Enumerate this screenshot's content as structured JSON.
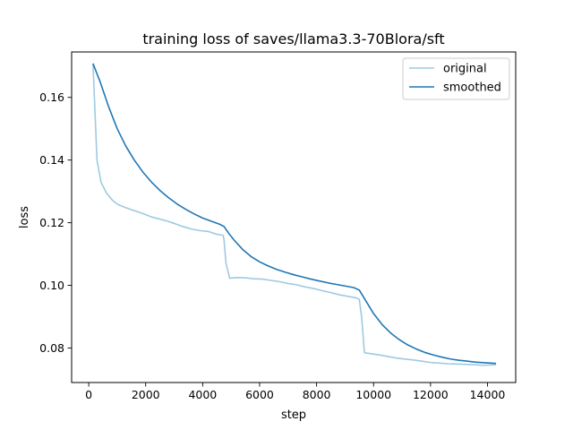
{
  "chart_data": {
    "type": "line",
    "title": "training loss of saves/llama3.3-70Blora/sft",
    "xlabel": "step",
    "ylabel": "loss",
    "xlim": [
      -600,
      14990
    ],
    "ylim": [
      0.069,
      0.1745
    ],
    "xticks": [
      0,
      2000,
      4000,
      6000,
      8000,
      10000,
      12000,
      14000
    ],
    "yticks": [
      0.08,
      0.1,
      0.12,
      0.14,
      0.16
    ],
    "xtick_labels": [
      "0",
      "2000",
      "4000",
      "6000",
      "8000",
      "10000",
      "12000",
      "14000"
    ],
    "ytick_labels": [
      "0.08",
      "0.10",
      "0.12",
      "0.14",
      "0.16"
    ],
    "grid": false,
    "legend_position": "top-right",
    "series": [
      {
        "name": "original",
        "color": "#9ecae1",
        "points": [
          [
            150,
            0.1708
          ],
          [
            290,
            0.14
          ],
          [
            430,
            0.133
          ],
          [
            620,
            0.1295
          ],
          [
            830,
            0.1272
          ],
          [
            1030,
            0.1258
          ],
          [
            1240,
            0.125
          ],
          [
            1480,
            0.1242
          ],
          [
            1720,
            0.1235
          ],
          [
            1960,
            0.1227
          ],
          [
            2220,
            0.1218
          ],
          [
            2480,
            0.1212
          ],
          [
            2760,
            0.1205
          ],
          [
            3000,
            0.1198
          ],
          [
            3300,
            0.1188
          ],
          [
            3600,
            0.118
          ],
          [
            3900,
            0.1175
          ],
          [
            4200,
            0.1172
          ],
          [
            4500,
            0.1163
          ],
          [
            4720,
            0.116
          ],
          [
            4750,
            0.1145
          ],
          [
            4820,
            0.107
          ],
          [
            4950,
            0.1023
          ],
          [
            5200,
            0.1025
          ],
          [
            5500,
            0.1024
          ],
          [
            5800,
            0.1021
          ],
          [
            6100,
            0.102
          ],
          [
            6400,
            0.1016
          ],
          [
            6700,
            0.1012
          ],
          [
            7000,
            0.1006
          ],
          [
            7300,
            0.1002
          ],
          [
            7600,
            0.0995
          ],
          [
            7900,
            0.099
          ],
          [
            8200,
            0.0983
          ],
          [
            8500,
            0.0977
          ],
          [
            8800,
            0.097
          ],
          [
            9100,
            0.0965
          ],
          [
            9400,
            0.096
          ],
          [
            9500,
            0.0955
          ],
          [
            9580,
            0.09
          ],
          [
            9680,
            0.0785
          ],
          [
            9900,
            0.0782
          ],
          [
            10200,
            0.0778
          ],
          [
            10500,
            0.0773
          ],
          [
            10800,
            0.0768
          ],
          [
            11100,
            0.0765
          ],
          [
            11400,
            0.0762
          ],
          [
            11700,
            0.0758
          ],
          [
            12000,
            0.0754
          ],
          [
            12300,
            0.0752
          ],
          [
            12600,
            0.075
          ],
          [
            12900,
            0.0749
          ],
          [
            13200,
            0.0748
          ],
          [
            13500,
            0.0747
          ],
          [
            13800,
            0.0745
          ],
          [
            14100,
            0.0746
          ],
          [
            14300,
            0.0747
          ]
        ]
      },
      {
        "name": "smoothed",
        "color": "#1f77b4",
        "points": [
          [
            150,
            0.1708
          ],
          [
            400,
            0.165
          ],
          [
            700,
            0.157
          ],
          [
            1000,
            0.15
          ],
          [
            1300,
            0.1445
          ],
          [
            1600,
            0.14
          ],
          [
            1900,
            0.1362
          ],
          [
            2200,
            0.133
          ],
          [
            2500,
            0.1303
          ],
          [
            2800,
            0.128
          ],
          [
            3100,
            0.126
          ],
          [
            3400,
            0.1243
          ],
          [
            3700,
            0.1228
          ],
          [
            4000,
            0.1215
          ],
          [
            4300,
            0.1205
          ],
          [
            4600,
            0.1195
          ],
          [
            4750,
            0.1188
          ],
          [
            4900,
            0.1168
          ],
          [
            5100,
            0.1145
          ],
          [
            5400,
            0.1115
          ],
          [
            5700,
            0.1092
          ],
          [
            6000,
            0.1075
          ],
          [
            6300,
            0.1062
          ],
          [
            6600,
            0.1051
          ],
          [
            6900,
            0.1042
          ],
          [
            7200,
            0.1034
          ],
          [
            7500,
            0.1027
          ],
          [
            7800,
            0.102
          ],
          [
            8100,
            0.1014
          ],
          [
            8400,
            0.1008
          ],
          [
            8700,
            0.1003
          ],
          [
            9000,
            0.0998
          ],
          [
            9300,
            0.0993
          ],
          [
            9500,
            0.0985
          ],
          [
            9700,
            0.0955
          ],
          [
            10000,
            0.091
          ],
          [
            10300,
            0.0875
          ],
          [
            10600,
            0.0848
          ],
          [
            10900,
            0.0827
          ],
          [
            11200,
            0.081
          ],
          [
            11500,
            0.0797
          ],
          [
            11800,
            0.0786
          ],
          [
            12100,
            0.0778
          ],
          [
            12400,
            0.0771
          ],
          [
            12700,
            0.0765
          ],
          [
            13000,
            0.0761
          ],
          [
            13300,
            0.0758
          ],
          [
            13600,
            0.0755
          ],
          [
            13900,
            0.0753
          ],
          [
            14300,
            0.0751
          ]
        ]
      }
    ]
  }
}
